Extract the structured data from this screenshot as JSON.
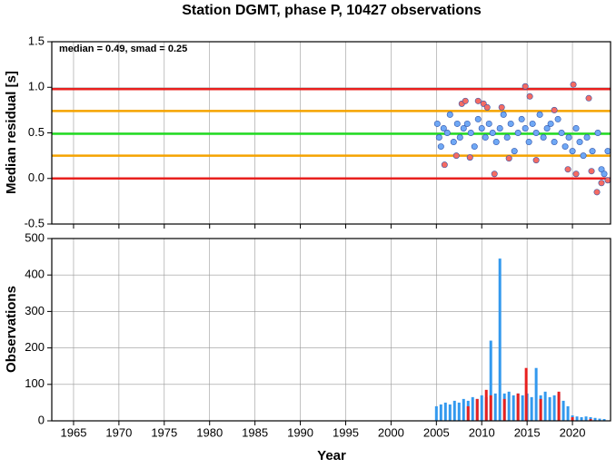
{
  "chart_data": [
    {
      "type": "scatter",
      "title": "Station DGMT, phase P, 10427 observations",
      "ylabel": "Median residual [s]",
      "annotation": "median = 0.49, smad = 0.25",
      "xlim": [
        1962.6,
        2024.2
      ],
      "xticks": [
        1965,
        1970,
        1975,
        1980,
        1985,
        1990,
        1995,
        2000,
        2005,
        2010,
        2015,
        2020
      ],
      "ylim": [
        -0.5,
        1.5
      ],
      "yticks": [
        -0.5,
        {
          "value": 0,
          "label": "0.0"
        },
        0.5,
        {
          "value": 1,
          "label": "1.0"
        },
        1.5
      ],
      "grid": true,
      "hlines": [
        {
          "value": 0,
          "color": "#e8201e"
        },
        {
          "value": 0.25,
          "color": "#f5a300"
        },
        {
          "value": 0.49,
          "color": "#22dd22"
        },
        {
          "value": 0.74,
          "color": "#f5a300"
        },
        {
          "value": 0.98,
          "color": "#e8201e"
        }
      ],
      "series": [
        {
          "color": "#6fa8f5",
          "x": [
            2005.1,
            2005.3,
            2005.5,
            2005.8,
            2006.2,
            2006.5,
            2006.9,
            2007.3,
            2007.6,
            2008.0,
            2008.4,
            2008.8,
            2009.2,
            2009.6,
            2010.0,
            2010.4,
            2010.8,
            2011.2,
            2011.6,
            2012.0,
            2012.4,
            2012.8,
            2013.2,
            2013.6,
            2014.0,
            2014.4,
            2014.8,
            2015.2,
            2015.6,
            2016.0,
            2016.4,
            2016.8,
            2017.2,
            2017.6,
            2018.0,
            2018.4,
            2018.8,
            2019.2,
            2019.6,
            2020.0,
            2020.4,
            2020.8,
            2021.2,
            2021.6,
            2022.2,
            2022.8,
            2023.2,
            2023.5,
            2023.9
          ],
          "values": [
            0.6,
            0.45,
            0.35,
            0.55,
            0.5,
            0.7,
            0.4,
            0.6,
            0.45,
            0.55,
            0.6,
            0.5,
            0.35,
            0.65,
            0.55,
            0.45,
            0.6,
            0.5,
            0.4,
            0.55,
            0.7,
            0.45,
            0.6,
            0.3,
            0.5,
            0.65,
            0.55,
            0.4,
            0.6,
            0.5,
            0.7,
            0.45,
            0.55,
            0.6,
            0.4,
            0.65,
            0.5,
            0.35,
            0.45,
            0.3,
            0.55,
            0.4,
            0.25,
            0.45,
            0.3,
            0.5,
            0.1,
            0.05,
            0.3
          ]
        },
        {
          "color": "#f56b63",
          "x": [
            2005.9,
            2007.2,
            2007.8,
            2008.2,
            2008.7,
            2009.6,
            2010.2,
            2010.6,
            2011.4,
            2012.2,
            2013.0,
            2014.8,
            2015.3,
            2016.0,
            2018.0,
            2019.5,
            2020.1,
            2020.4,
            2021.8,
            2022.1,
            2022.7,
            2023.2,
            2023.9
          ],
          "values": [
            0.15,
            0.25,
            0.82,
            0.85,
            0.23,
            0.85,
            0.82,
            0.78,
            0.05,
            0.78,
            0.22,
            1.01,
            0.9,
            0.2,
            0.75,
            0.1,
            1.03,
            0.05,
            0.88,
            0.08,
            -0.15,
            -0.05,
            -0.02
          ]
        }
      ]
    },
    {
      "type": "bar",
      "ylabel": "Observations",
      "xlabel": "Year",
      "xlim": [
        1962.6,
        2024.2
      ],
      "xticks": [
        1965,
        1970,
        1975,
        1980,
        1985,
        1990,
        1995,
        2000,
        2005,
        2010,
        2015,
        2020
      ],
      "ylim": [
        0,
        500
      ],
      "yticks": [
        0,
        100,
        200,
        300,
        400,
        500
      ],
      "grid": true,
      "series": [
        {
          "color": "#3399ee",
          "x": [
            2005.0,
            2005.5,
            2006.0,
            2006.5,
            2007.0,
            2007.5,
            2008.0,
            2008.5,
            2009.0,
            2009.5,
            2010.0,
            2010.5,
            2011.0,
            2011.5,
            2012.0,
            2012.5,
            2013.0,
            2013.5,
            2014.0,
            2014.5,
            2015.0,
            2015.5,
            2016.0,
            2016.5,
            2017.0,
            2017.5,
            2018.0,
            2018.5,
            2019.0,
            2019.5,
            2020.0,
            2020.5,
            2021.0,
            2021.5,
            2022.0,
            2022.5,
            2023.0,
            2023.5
          ],
          "values": [
            40,
            45,
            50,
            45,
            55,
            50,
            60,
            55,
            65,
            60,
            70,
            65,
            220,
            75,
            445,
            75,
            80,
            70,
            75,
            70,
            75,
            65,
            145,
            70,
            80,
            65,
            70,
            75,
            55,
            40,
            15,
            12,
            10,
            12,
            10,
            8,
            6,
            5
          ]
        },
        {
          "color": "#e8201e",
          "x": [
            2008.5,
            2009.5,
            2010.5,
            2011.0,
            2012.5,
            2014.0,
            2014.9,
            2016.5,
            2018.5,
            2020.0,
            2022.0
          ],
          "values": [
            40,
            60,
            85,
            70,
            60,
            75,
            145,
            60,
            80,
            10,
            5
          ]
        }
      ]
    }
  ]
}
